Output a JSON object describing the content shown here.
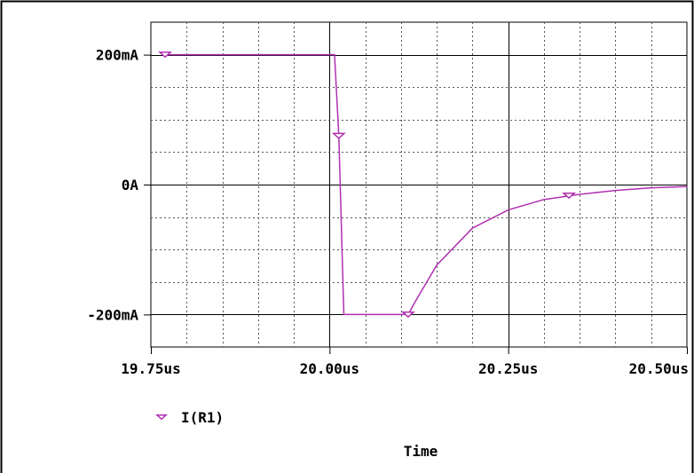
{
  "chart_data": {
    "type": "line",
    "title": "",
    "xlabel": "Time",
    "ylabel": "",
    "xlim": [
      19.75,
      20.5
    ],
    "ylim": [
      -250,
      250
    ],
    "grid": true,
    "legend_placement": "bottom-left",
    "x_ticks": [
      {
        "value": 19.75,
        "label": "19.75us"
      },
      {
        "value": 20.0,
        "label": "20.00us"
      },
      {
        "value": 20.25,
        "label": "20.25us"
      },
      {
        "value": 20.5,
        "label": "20.50us"
      }
    ],
    "y_ticks": [
      {
        "value": 200,
        "label": "200mA"
      },
      {
        "value": 0,
        "label": "0A"
      },
      {
        "value": -200,
        "label": "-200mA"
      }
    ],
    "series": [
      {
        "name": "I(R1)",
        "color": "#b030b0",
        "marker": "triangle-down",
        "x": [
          19.77,
          20.007,
          20.013,
          20.02,
          20.11,
          20.12,
          20.15,
          20.2,
          20.25,
          20.3,
          20.35,
          20.4,
          20.45,
          20.5
        ],
        "y": [
          200,
          200,
          75,
          -200,
          -200,
          -180,
          -124,
          -67,
          -39,
          -23,
          -15,
          -9,
          -5,
          -3
        ],
        "marker_points": [
          {
            "x": 19.77,
            "y": 200
          },
          {
            "x": 20.013,
            "y": 75
          },
          {
            "x": 20.11,
            "y": -200
          },
          {
            "x": 20.335,
            "y": -17
          }
        ]
      }
    ]
  }
}
